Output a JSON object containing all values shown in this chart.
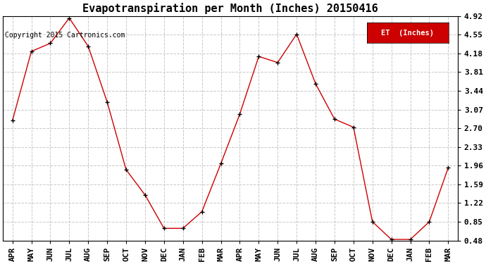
{
  "title": "Evapotranspiration per Month (Inches) 20150416",
  "copyright_text": "Copyright 2015 Cartronics.com",
  "legend_label": "ET  (Inches)",
  "legend_bg": "#cc0000",
  "legend_fg": "#ffffff",
  "x_labels": [
    "APR",
    "MAY",
    "JUN",
    "JUL",
    "AUG",
    "SEP",
    "OCT",
    "NOV",
    "DEC",
    "JAN",
    "FEB",
    "MAR",
    "APR",
    "MAY",
    "JUN",
    "JUL",
    "AUG",
    "SEP",
    "OCT",
    "NOV",
    "DEC",
    "JAN",
    "FEB",
    "MAR"
  ],
  "y_values": [
    2.85,
    4.22,
    4.38,
    4.88,
    4.32,
    3.22,
    1.88,
    1.38,
    0.72,
    0.72,
    1.05,
    2.0,
    2.98,
    4.12,
    4.0,
    4.56,
    3.58,
    2.88,
    2.72,
    0.85,
    0.5,
    0.5,
    0.85,
    1.92
  ],
  "y_ticks": [
    0.48,
    0.85,
    1.22,
    1.59,
    1.96,
    2.33,
    2.7,
    3.07,
    3.44,
    3.81,
    4.18,
    4.55,
    4.92
  ],
  "y_min": 0.48,
  "y_max": 4.92,
  "line_color": "#cc0000",
  "marker": "+",
  "marker_color": "#000000",
  "grid_color": "#c8c8c8",
  "bg_color": "#ffffff",
  "plot_bg_color": "#ffffff",
  "title_fontsize": 11,
  "tick_fontsize": 8,
  "copyright_fontsize": 7
}
